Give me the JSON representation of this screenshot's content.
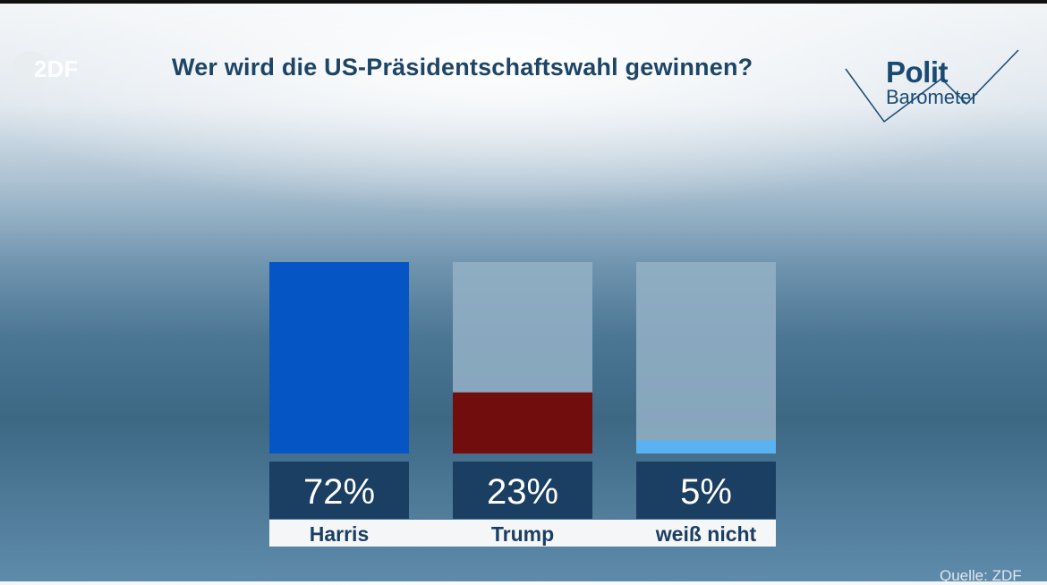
{
  "header": {
    "title": "Wer wird die US-Präsidentschaftswahl gewinnen?",
    "zdf_logo_text": "ZDF",
    "politbarometer_line1": "Polit",
    "politbarometer_line2": "Barometer"
  },
  "footer": {
    "source": "Quelle: ZDF"
  },
  "colors": {
    "harris": "#0655c4",
    "trump": "#720d0e",
    "unknown": "#5ab3f0",
    "track": "#94b1c7",
    "value_box": "#1b3e63",
    "label_box": "#f4f6f8"
  },
  "chart_data": {
    "type": "bar",
    "title": "Wer wird die US-Präsidentschaftswahl gewinnen?",
    "categories": [
      "Harris",
      "Trump",
      "weiß nicht"
    ],
    "values": [
      72,
      23,
      5
    ],
    "value_labels": [
      "72%",
      "23%",
      "5%"
    ],
    "unit": "%",
    "ylim": [
      0,
      72
    ],
    "grid": false,
    "legend": "none"
  }
}
